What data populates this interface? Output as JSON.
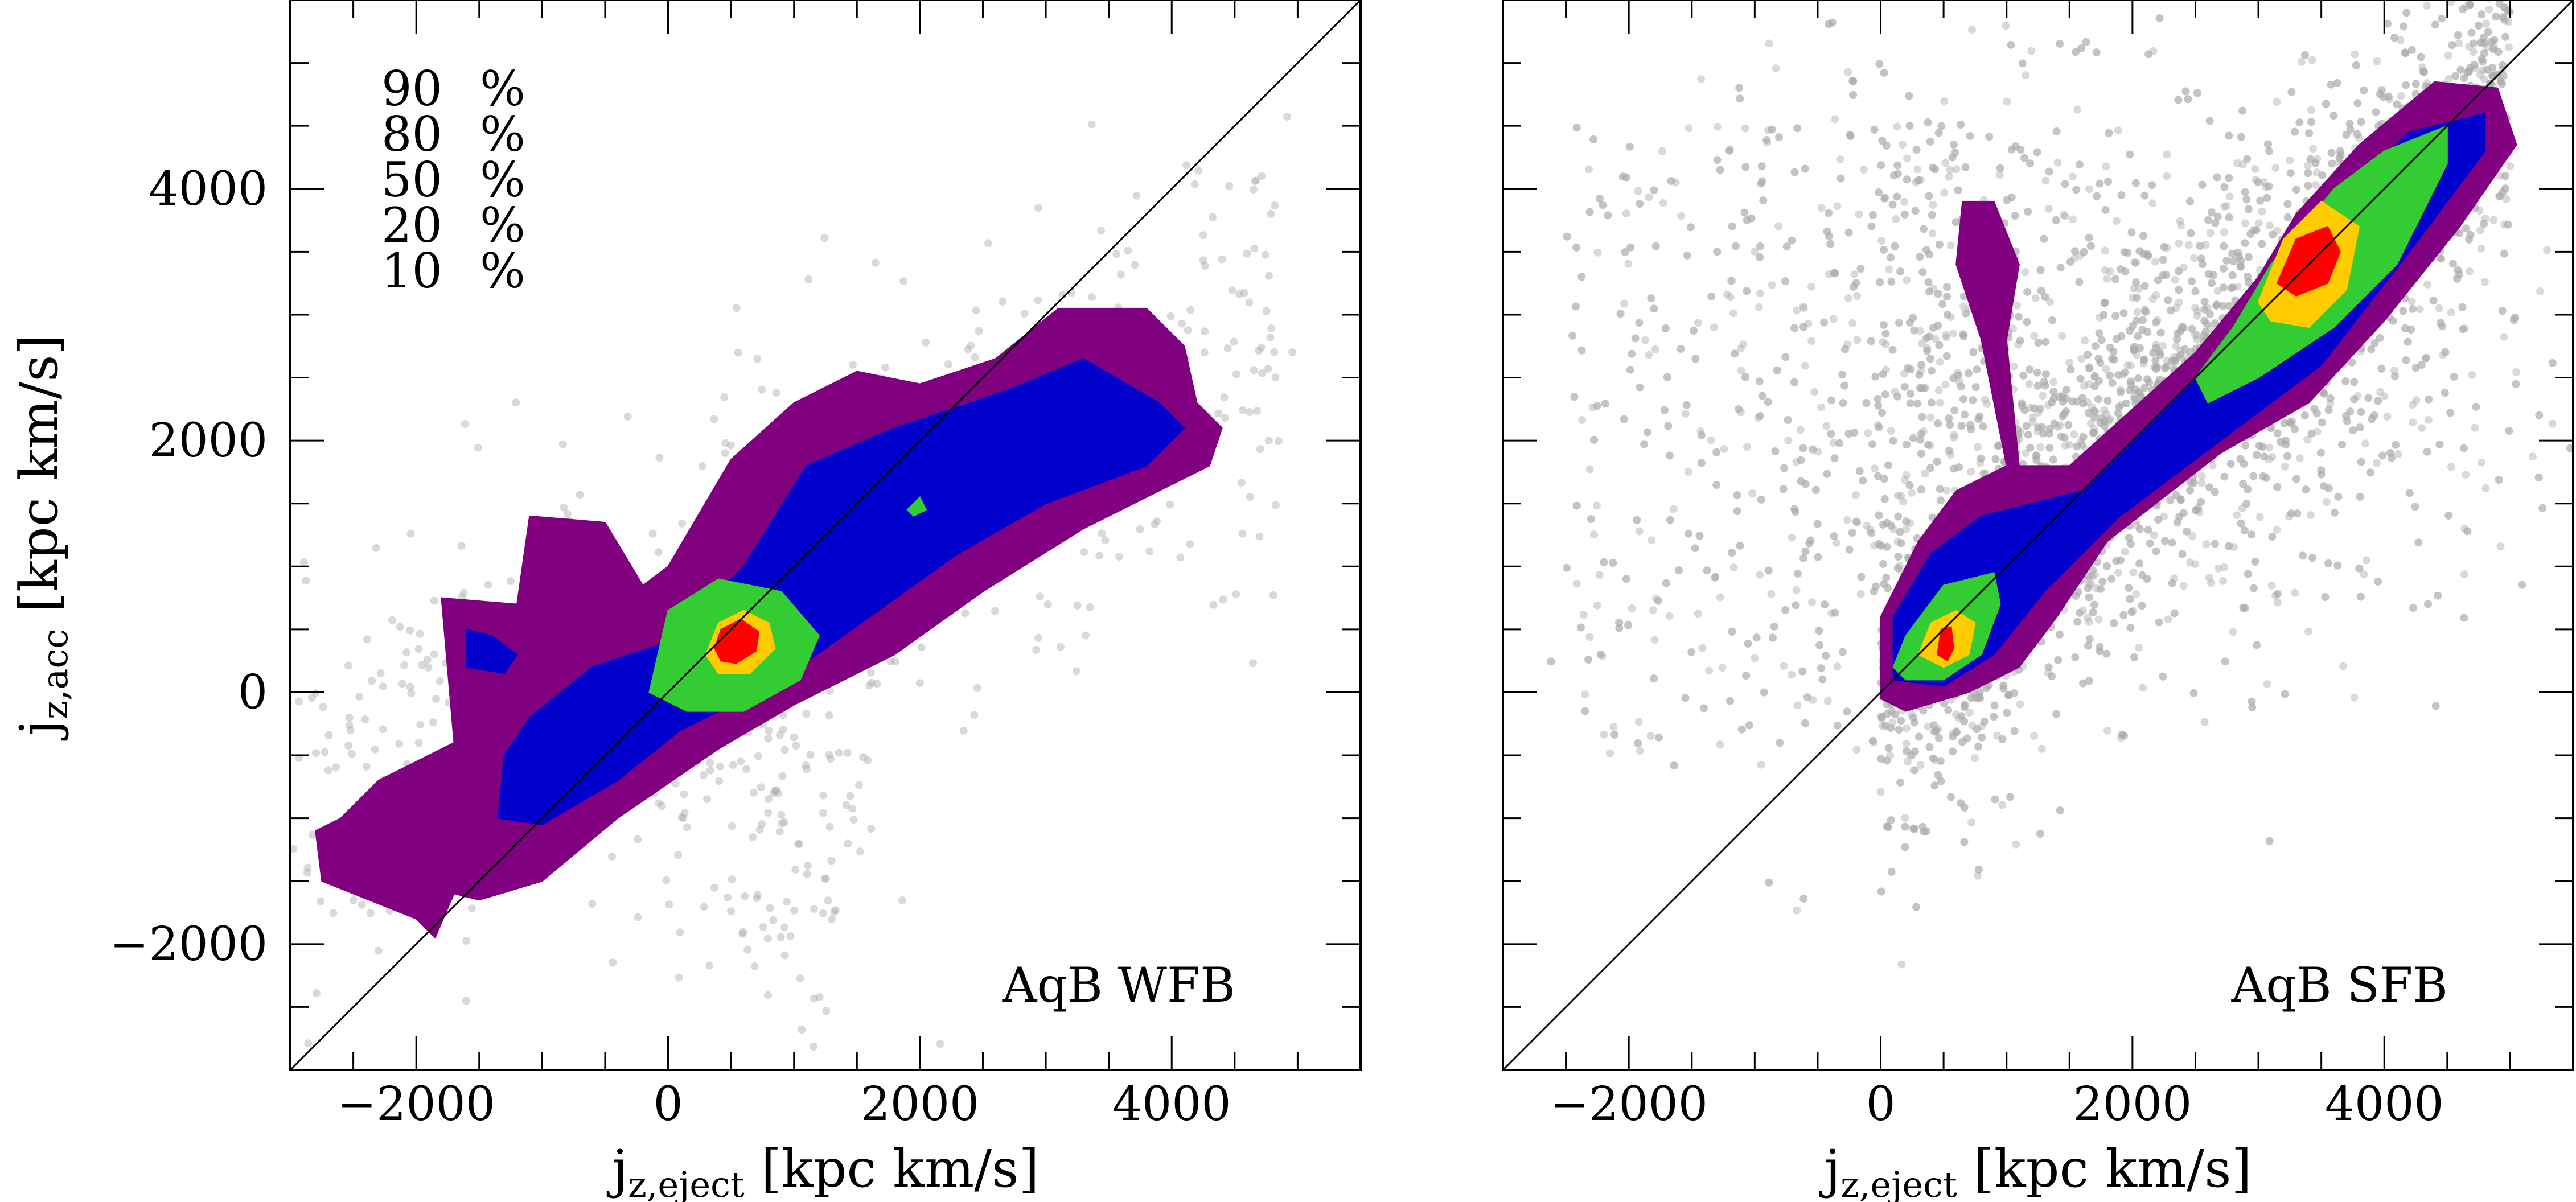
{
  "chart_data": [
    {
      "type": "scatter",
      "label": "AqB WFB",
      "xlabel_main": "j",
      "xlabel_sub": "z,eject",
      "xlabel_unit": "[kpc km/s]",
      "ylabel_main": "j",
      "ylabel_sub": "z,acc",
      "ylabel_unit": "[kpc km/s]",
      "xlim": [
        -3000,
        5500
      ],
      "ylim": [
        -3000,
        5500
      ],
      "xticks": [
        -2000,
        0,
        2000,
        4000
      ],
      "xtick_labels": [
        "−2000",
        "0",
        "2000",
        "4000"
      ],
      "yticks": [
        -2000,
        0,
        2000,
        4000
      ],
      "ytick_labels": [
        "−2000",
        "0",
        "2000",
        "4000"
      ],
      "diagonal": "y = x",
      "legend": [
        {
          "level": "90",
          "unit": "%",
          "color": "#800080"
        },
        {
          "level": "80",
          "unit": "%",
          "color": "#0000cc"
        },
        {
          "level": "50",
          "unit": "%",
          "color": "#33cc33"
        },
        {
          "level": "20",
          "unit": "%",
          "color": "#ffcc00"
        },
        {
          "level": "10",
          "unit": "%",
          "color": "#ff0000"
        }
      ],
      "contours": [
        {
          "level": "90%",
          "color": "#800080",
          "polygons": [
            [
              [
                -2800,
                -1100
              ],
              [
                -2750,
                -1500
              ],
              [
                -2000,
                -1800
              ],
              [
                -1850,
                -1950
              ],
              [
                -1700,
                -1600
              ],
              [
                -1500,
                -1650
              ],
              [
                -1000,
                -1500
              ],
              [
                -400,
                -1000
              ],
              [
                400,
                -450
              ],
              [
                1000,
                -100
              ],
              [
                1800,
                300
              ],
              [
                2500,
                800
              ],
              [
                3300,
                1300
              ],
              [
                4300,
                1800
              ],
              [
                4400,
                2100
              ],
              [
                4200,
                2300
              ],
              [
                4100,
                2750
              ],
              [
                3800,
                3050
              ],
              [
                3100,
                3050
              ],
              [
                2600,
                2650
              ],
              [
                2000,
                2450
              ],
              [
                1500,
                2550
              ],
              [
                1000,
                2300
              ],
              [
                500,
                1850
              ],
              [
                0,
                1000
              ],
              [
                -200,
                850
              ],
              [
                -500,
                1350
              ],
              [
                -1100,
                1400
              ],
              [
                -1200,
                700
              ],
              [
                -1800,
                750
              ],
              [
                -1700,
                -400
              ],
              [
                -2300,
                -700
              ],
              [
                -2600,
                -1000
              ]
            ]
          ]
        },
        {
          "level": "80%",
          "color": "#0000cc",
          "polygons": [
            [
              [
                -1350,
                -1000
              ],
              [
                -1300,
                -500
              ],
              [
                -1100,
                -200
              ],
              [
                -600,
                200
              ],
              [
                0,
                400
              ],
              [
                600,
                1000
              ],
              [
                1100,
                1800
              ],
              [
                1800,
                2100
              ],
              [
                2700,
                2400
              ],
              [
                3300,
                2650
              ],
              [
                3900,
                2300
              ],
              [
                4100,
                2100
              ],
              [
                3800,
                1800
              ],
              [
                3000,
                1500
              ],
              [
                2300,
                1100
              ],
              [
                1600,
                600
              ],
              [
                900,
                100
              ],
              [
                100,
                -300
              ],
              [
                -400,
                -700
              ],
              [
                -1000,
                -1050
              ]
            ],
            [
              [
                -1600,
                200
              ],
              [
                -1600,
                500
              ],
              [
                -1400,
                450
              ],
              [
                -1200,
                300
              ],
              [
                -1300,
                150
              ]
            ]
          ]
        },
        {
          "level": "50%",
          "color": "#33cc33",
          "polygons": [
            [
              [
                -150,
                0
              ],
              [
                0,
                650
              ],
              [
                400,
                900
              ],
              [
                900,
                800
              ],
              [
                1200,
                450
              ],
              [
                1050,
                100
              ],
              [
                600,
                -150
              ],
              [
                150,
                -150
              ]
            ],
            [
              [
                1900,
                1450
              ],
              [
                2000,
                1550
              ],
              [
                2050,
                1450
              ],
              [
                1950,
                1400
              ]
            ]
          ]
        },
        {
          "level": "20%",
          "color": "#ffcc00",
          "polygons": [
            [
              [
                300,
                300
              ],
              [
                400,
                550
              ],
              [
                600,
                650
              ],
              [
                800,
                550
              ],
              [
                850,
                350
              ],
              [
                650,
                150
              ],
              [
                400,
                150
              ]
            ]
          ]
        },
        {
          "level": "10%",
          "color": "#ff0000",
          "polygons": [
            [
              [
                370,
                350
              ],
              [
                420,
                500
              ],
              [
                580,
                580
              ],
              [
                720,
                480
              ],
              [
                700,
                330
              ],
              [
                540,
                230
              ],
              [
                420,
                250
              ]
            ]
          ]
        }
      ]
    },
    {
      "type": "scatter",
      "label": "AqB SFB",
      "xlabel_main": "j",
      "xlabel_sub": "z,eject",
      "xlabel_unit": "[kpc km/s]",
      "xlim": [
        -3000,
        5500
      ],
      "ylim": [
        -3000,
        5500
      ],
      "xticks": [
        -2000,
        0,
        2000,
        4000
      ],
      "xtick_labels": [
        "−2000",
        "0",
        "2000",
        "4000"
      ],
      "yticks": [
        -2000,
        0,
        2000,
        4000
      ],
      "diagonal": "y = x",
      "contours": [
        {
          "level": "90%",
          "color": "#800080",
          "polygons": [
            [
              [
                0,
                -50
              ],
              [
                0,
                600
              ],
              [
                300,
                1200
              ],
              [
                600,
                1600
              ],
              [
                1000,
                1800
              ],
              [
                800,
                2800
              ],
              [
                600,
                3400
              ],
              [
                650,
                3900
              ],
              [
                900,
                3900
              ],
              [
                1100,
                3400
              ],
              [
                1000,
                2800
              ],
              [
                1100,
                1800
              ],
              [
                1500,
                1800
              ],
              [
                2500,
                2700
              ],
              [
                3000,
                3300
              ],
              [
                3300,
                3800
              ],
              [
                3800,
                4350
              ],
              [
                4400,
                4850
              ],
              [
                4900,
                4800
              ],
              [
                5050,
                4350
              ],
              [
                4600,
                3700
              ],
              [
                4000,
                2950
              ],
              [
                3400,
                2300
              ],
              [
                2700,
                1900
              ],
              [
                1800,
                1200
              ],
              [
                1400,
                600
              ],
              [
                1100,
                200
              ],
              [
                700,
                0
              ],
              [
                200,
                -150
              ]
            ]
          ]
        },
        {
          "level": "80%",
          "color": "#0000cc",
          "polygons": [
            [
              [
                100,
                100
              ],
              [
                100,
                600
              ],
              [
                400,
                1100
              ],
              [
                800,
                1400
              ],
              [
                1200,
                1500
              ],
              [
                1600,
                1600
              ],
              [
                2500,
                2500
              ],
              [
                3100,
                3300
              ],
              [
                3500,
                3800
              ],
              [
                4200,
                4450
              ],
              [
                4800,
                4600
              ],
              [
                4800,
                4300
              ],
              [
                4200,
                3500
              ],
              [
                3500,
                2600
              ],
              [
                2700,
                2000
              ],
              [
                1900,
                1400
              ],
              [
                1300,
                800
              ],
              [
                900,
                300
              ],
              [
                500,
                50
              ]
            ]
          ]
        },
        {
          "level": "50%",
          "color": "#33cc33",
          "polygons": [
            [
              [
                100,
                200
              ],
              [
                200,
                450
              ],
              [
                500,
                850
              ],
              [
                900,
                950
              ],
              [
                950,
                700
              ],
              [
                800,
                300
              ],
              [
                500,
                100
              ],
              [
                200,
                100
              ]
            ],
            [
              [
                2500,
                2500
              ],
              [
                2800,
                2900
              ],
              [
                3100,
                3400
              ],
              [
                3600,
                4000
              ],
              [
                4000,
                4300
              ],
              [
                4500,
                4500
              ],
              [
                4500,
                4200
              ],
              [
                4100,
                3400
              ],
              [
                3600,
                2900
              ],
              [
                3000,
                2500
              ],
              [
                2600,
                2300
              ]
            ]
          ]
        },
        {
          "level": "20%",
          "color": "#ffcc00",
          "polygons": [
            [
              [
                300,
                300
              ],
              [
                400,
                550
              ],
              [
                600,
                650
              ],
              [
                750,
                550
              ],
              [
                700,
                300
              ],
              [
                500,
                200
              ]
            ],
            [
              [
                3000,
                3100
              ],
              [
                3200,
                3600
              ],
              [
                3500,
                3900
              ],
              [
                3800,
                3700
              ],
              [
                3700,
                3200
              ],
              [
                3400,
                2900
              ],
              [
                3100,
                2950
              ]
            ]
          ]
        },
        {
          "level": "10%",
          "color": "#ff0000",
          "polygons": [
            [
              [
                450,
                300
              ],
              [
                480,
                500
              ],
              [
                560,
                520
              ],
              [
                580,
                350
              ],
              [
                530,
                250
              ]
            ],
            [
              [
                3150,
                3250
              ],
              [
                3300,
                3600
              ],
              [
                3550,
                3700
              ],
              [
                3650,
                3500
              ],
              [
                3550,
                3250
              ],
              [
                3300,
                3150
              ]
            ]
          ]
        }
      ]
    }
  ]
}
